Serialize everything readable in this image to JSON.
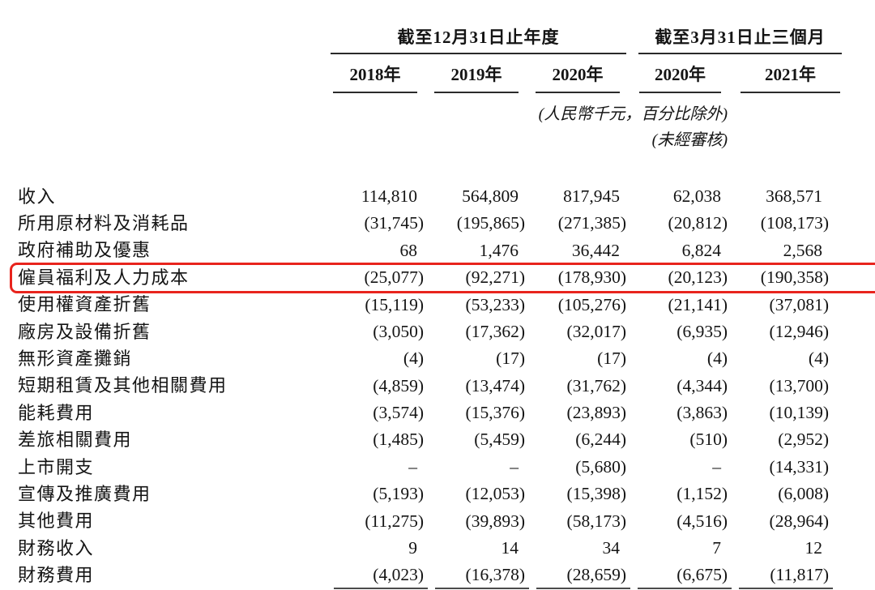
{
  "table": {
    "col_groups": [
      {
        "title": "截至12月31日止年度",
        "years": [
          "2018年",
          "2019年",
          "2020年"
        ]
      },
      {
        "title": "截至3月31日止三個月",
        "years": [
          "2020年",
          "2021年"
        ]
      }
    ],
    "notes": {
      "units": "(人民幣千元，百分比除外)",
      "unaudited": "(未經審核)"
    },
    "highlight": {
      "row_index": 3,
      "color": "#e8241d"
    },
    "rows": [
      {
        "label": "收入",
        "values": [
          "114,810",
          "564,809",
          "817,945",
          "62,038",
          "368,571"
        ]
      },
      {
        "label": "所用原材料及消耗品",
        "values": [
          "(31,745)",
          "(195,865)",
          "(271,385)",
          "(20,812)",
          "(108,173)"
        ]
      },
      {
        "label": "政府補助及優惠",
        "values": [
          "68",
          "1,476",
          "36,442",
          "6,824",
          "2,568"
        ]
      },
      {
        "label": "僱員福利及人力成本",
        "values": [
          "(25,077)",
          "(92,271)",
          "(178,930)",
          "(20,123)",
          "(190,358)"
        ]
      },
      {
        "label": "使用權資產折舊",
        "values": [
          "(15,119)",
          "(53,233)",
          "(105,276)",
          "(21,141)",
          "(37,081)"
        ]
      },
      {
        "label": "廠房及設備折舊",
        "values": [
          "(3,050)",
          "(17,362)",
          "(32,017)",
          "(6,935)",
          "(12,946)"
        ]
      },
      {
        "label": "無形資產攤銷",
        "values": [
          "(4)",
          "(17)",
          "(17)",
          "(4)",
          "(4)"
        ]
      },
      {
        "label": "短期租賃及其他相關費用",
        "values": [
          "(4,859)",
          "(13,474)",
          "(31,762)",
          "(4,344)",
          "(13,700)"
        ]
      },
      {
        "label": "能耗費用",
        "values": [
          "(3,574)",
          "(15,376)",
          "(23,893)",
          "(3,863)",
          "(10,139)"
        ]
      },
      {
        "label": "差旅相關費用",
        "values": [
          "(1,485)",
          "(5,459)",
          "(6,244)",
          "(510)",
          "(2,952)"
        ]
      },
      {
        "label": "上市開支",
        "values": [
          "–",
          "–",
          "(5,680)",
          "–",
          "(14,331)"
        ]
      },
      {
        "label": "宣傳及推廣費用",
        "values": [
          "(5,193)",
          "(12,053)",
          "(15,398)",
          "(1,152)",
          "(6,008)"
        ]
      },
      {
        "label": "其他費用",
        "values": [
          "(11,275)",
          "(39,893)",
          "(58,173)",
          "(4,516)",
          "(28,964)"
        ]
      },
      {
        "label": "財務收入",
        "values": [
          "9",
          "14",
          "34",
          "7",
          "12"
        ]
      },
      {
        "label": "財務費用",
        "values": [
          "(4,023)",
          "(16,378)",
          "(28,659)",
          "(6,675)",
          "(11,817)"
        ]
      }
    ]
  }
}
